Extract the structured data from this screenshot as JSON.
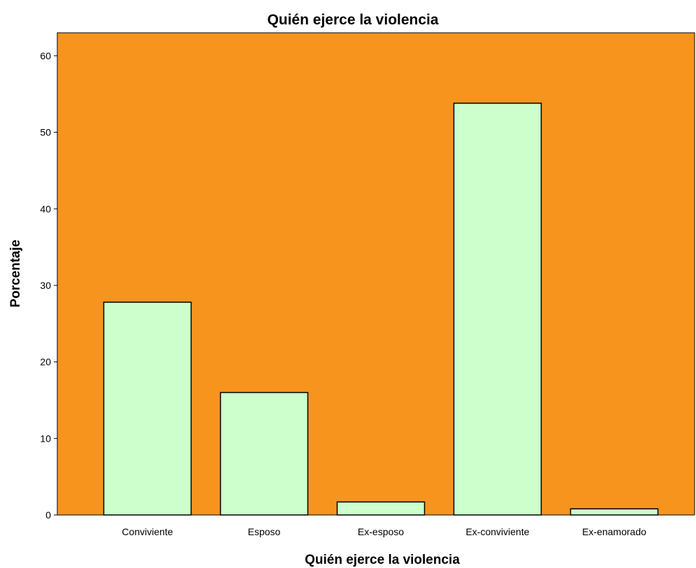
{
  "chart_data": {
    "type": "bar",
    "title": "Quién ejerce la violencia",
    "xlabel": "Quién ejerce la violencia",
    "ylabel": "Porcentaje",
    "categories": [
      "Conviviente",
      "Esposo",
      "Ex-esposo",
      "Ex-conviviente",
      "Ex-enamorado"
    ],
    "values": [
      27.8,
      16.0,
      1.7,
      53.8,
      0.8
    ],
    "ylim": [
      0,
      63
    ],
    "yticks": [
      "0",
      "10",
      "20",
      "30",
      "40",
      "50",
      "60"
    ],
    "grid": false,
    "legend": "none",
    "colors": {
      "plot_background": "#F7941D",
      "bar_fill": "#CCFFCC",
      "bar_stroke": "#000000"
    }
  }
}
